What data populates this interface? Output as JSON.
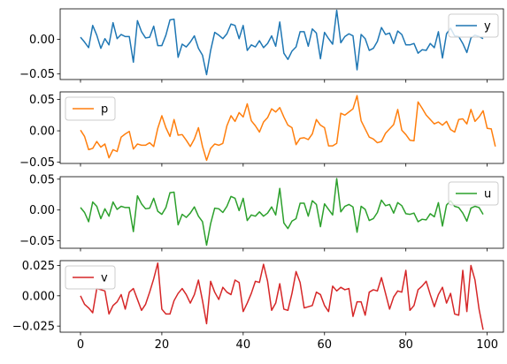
{
  "chart_data": [
    {
      "type": "line",
      "series": [
        {
          "name": "y",
          "color": "#1f77b4",
          "values": [
            0.003,
            -0.004,
            -0.012,
            0.02,
            0.006,
            -0.013,
            0.001,
            -0.008,
            0.024,
            0.001,
            0.007,
            0.004,
            0.004,
            -0.033,
            0.027,
            0.011,
            0.002,
            0.003,
            0.019,
            -0.009,
            -0.009,
            0.006,
            0.028,
            0.029,
            -0.026,
            -0.007,
            -0.011,
            -0.004,
            0.005,
            -0.013,
            -0.023,
            -0.051,
            -0.016,
            0.01,
            0.006,
            0.001,
            0.008,
            0.022,
            0.02,
            0.001,
            0.02,
            -0.016,
            -0.008,
            -0.011,
            -0.002,
            -0.012,
            -0.006,
            0.005,
            -0.01,
            0.025,
            -0.02,
            -0.029,
            -0.017,
            -0.011,
            0.011,
            0.011,
            -0.01,
            0.015,
            0.009,
            -0.028,
            0.01,
            0.001,
            -0.007,
            0.042,
            -0.005,
            0.004,
            0.008,
            0.005,
            -0.044,
            0.007,
            0.001,
            -0.016,
            -0.013,
            -0.003,
            0.017,
            0.007,
            0.009,
            -0.006,
            0.012,
            0.007,
            -0.008,
            -0.008,
            -0.006,
            -0.02,
            -0.015,
            -0.016,
            -0.006,
            -0.012,
            0.011,
            -0.027,
            0.008,
            0.016,
            0.005,
            0.004,
            -0.006,
            -0.019,
            0.002,
            0.006,
            0.004,
            0.001
          ]
        }
      ],
      "ylim": [
        -0.058,
        0.044
      ],
      "yticks": [
        -0.05,
        0.0
      ],
      "ytick_labels": [
        "−0.05",
        "0.00"
      ],
      "legend": "top-right"
    },
    {
      "type": "line",
      "series": [
        {
          "name": "p",
          "color": "#ff7f0e",
          "values": [
            0.001,
            -0.009,
            -0.03,
            -0.028,
            -0.017,
            -0.026,
            -0.021,
            -0.043,
            -0.03,
            -0.033,
            -0.01,
            -0.005,
            -0.001,
            -0.029,
            -0.021,
            -0.023,
            -0.023,
            -0.019,
            -0.025,
            0.004,
            0.024,
            0.005,
            -0.009,
            0.018,
            -0.007,
            -0.006,
            -0.015,
            -0.025,
            -0.013,
            0.005,
            -0.025,
            -0.047,
            -0.028,
            -0.021,
            -0.023,
            -0.02,
            0.008,
            0.024,
            0.015,
            0.029,
            0.022,
            0.043,
            0.016,
            0.008,
            -0.002,
            0.014,
            0.021,
            0.035,
            0.03,
            0.037,
            0.022,
            0.009,
            0.005,
            -0.022,
            -0.012,
            -0.011,
            -0.014,
            -0.005,
            0.018,
            0.009,
            0.005,
            -0.024,
            -0.024,
            -0.02,
            0.028,
            0.025,
            0.03,
            0.035,
            0.056,
            0.016,
            0.003,
            -0.01,
            -0.013,
            -0.019,
            -0.017,
            -0.004,
            0.003,
            0.01,
            0.034,
            0.001,
            -0.006,
            -0.015,
            -0.016,
            0.046,
            0.036,
            0.025,
            0.018,
            0.011,
            0.014,
            0.009,
            0.015,
            0.002,
            -0.002,
            0.018,
            0.019,
            0.011,
            0.034,
            0.015,
            0.022,
            0.032,
            0.004,
            0.003,
            -0.025
          ]
        }
      ],
      "ylim": [
        -0.052,
        0.062
      ],
      "yticks": [
        -0.05,
        0.0,
        0.05
      ],
      "ytick_labels": [
        "−0.05",
        "0.00",
        "0.05"
      ],
      "legend": "top-left"
    },
    {
      "type": "line",
      "series": [
        {
          "name": "u",
          "color": "#2ca02c",
          "values": [
            0.004,
            -0.004,
            -0.019,
            0.013,
            0.006,
            -0.014,
            0.002,
            -0.01,
            0.013,
            0.001,
            0.006,
            0.004,
            0.004,
            -0.035,
            0.023,
            0.01,
            0.002,
            0.003,
            0.019,
            -0.002,
            -0.007,
            0.004,
            0.028,
            0.029,
            -0.024,
            -0.007,
            -0.012,
            -0.005,
            0.005,
            -0.01,
            -0.019,
            -0.057,
            -0.022,
            0.003,
            0.002,
            -0.004,
            0.006,
            0.022,
            0.019,
            -0.001,
            0.019,
            -0.017,
            -0.008,
            -0.01,
            -0.003,
            -0.01,
            -0.005,
            0.005,
            -0.008,
            0.035,
            -0.021,
            -0.03,
            -0.018,
            -0.014,
            0.011,
            0.011,
            -0.01,
            0.015,
            0.009,
            -0.027,
            0.01,
            0.001,
            -0.008,
            0.051,
            -0.003,
            0.006,
            0.009,
            0.005,
            -0.036,
            0.006,
            0.001,
            -0.017,
            -0.014,
            -0.004,
            0.016,
            0.007,
            0.009,
            -0.005,
            0.012,
            0.007,
            -0.006,
            -0.007,
            -0.005,
            -0.019,
            -0.015,
            -0.016,
            -0.006,
            -0.011,
            0.012,
            -0.026,
            0.008,
            0.015,
            0.006,
            0.004,
            -0.005,
            -0.018,
            0.003,
            0.006,
            0.004,
            -0.007
          ]
        }
      ],
      "ylim": [
        -0.062,
        0.054
      ],
      "yticks": [
        -0.05,
        0.0,
        0.05
      ],
      "ytick_labels": [
        "−0.05",
        "0.00",
        "0.05"
      ],
      "legend": "top-right"
    },
    {
      "type": "line",
      "series": [
        {
          "name": "v",
          "color": "#d62728",
          "values": [
            0.0,
            -0.007,
            -0.01,
            -0.014,
            0.006,
            0.005,
            0.004,
            -0.015,
            -0.008,
            -0.005,
            0.001,
            -0.011,
            0.003,
            0.006,
            -0.003,
            -0.012,
            -0.007,
            0.003,
            0.014,
            0.027,
            -0.011,
            -0.015,
            -0.015,
            -0.004,
            0.002,
            0.006,
            0.001,
            -0.006,
            0.001,
            0.013,
            -0.004,
            -0.023,
            0.012,
            0.003,
            -0.003,
            0.007,
            0.003,
            0.001,
            0.013,
            0.011,
            -0.013,
            -0.006,
            0.002,
            0.012,
            0.011,
            0.026,
            0.012,
            -0.012,
            -0.006,
            0.01,
            -0.011,
            -0.012,
            0.002,
            0.02,
            0.011,
            -0.01,
            -0.009,
            -0.008,
            0.003,
            0.001,
            -0.008,
            -0.013,
            0.008,
            0.004,
            0.007,
            0.005,
            0.006,
            -0.017,
            -0.005,
            -0.005,
            -0.016,
            0.003,
            0.005,
            0.004,
            0.015,
            0.002,
            -0.011,
            -0.001,
            0.004,
            0.003,
            0.021,
            -0.012,
            -0.008,
            0.005,
            0.008,
            0.012,
            0.001,
            -0.009,
            0.001,
            0.007,
            -0.006,
            0.002,
            -0.015,
            -0.016,
            0.021,
            -0.013,
            0.025,
            0.013,
            -0.011,
            -0.028
          ]
        }
      ],
      "ylim": [
        -0.03,
        0.029
      ],
      "yticks": [
        -0.025,
        0.0,
        0.025
      ],
      "ytick_labels": [
        "−0.025",
        "0.000",
        "0.025"
      ],
      "legend": "top-left"
    }
  ],
  "shared_x": {
    "xlim": [
      -5,
      104
    ],
    "xticks": [
      0,
      20,
      40,
      60,
      80,
      100
    ],
    "xtick_labels": [
      "0",
      "20",
      "40",
      "60",
      "80",
      "100"
    ]
  }
}
